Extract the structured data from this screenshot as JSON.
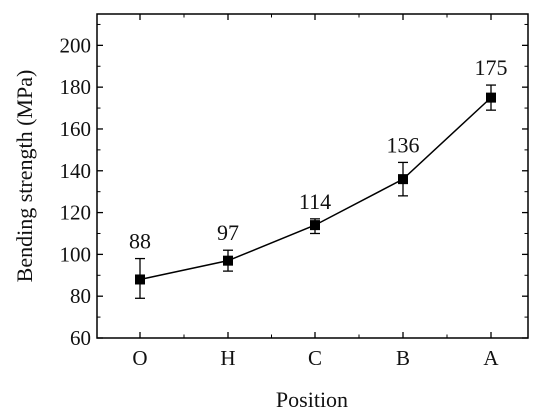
{
  "chart_data": {
    "type": "line",
    "title": "",
    "xlabel": "Position",
    "ylabel": "Bending strength (MPa)",
    "categories": [
      "O",
      "H",
      "C",
      "B",
      "A"
    ],
    "series": [
      {
        "values": [
          88,
          97,
          114,
          136,
          175
        ],
        "error_low": [
          79,
          92,
          110,
          128,
          169
        ],
        "error_high": [
          98,
          102,
          117,
          144,
          181
        ],
        "marker": "square",
        "color": "#000000"
      }
    ],
    "data_labels": [
      "88",
      "97",
      "114",
      "136",
      "175"
    ],
    "ylim": [
      60,
      215
    ],
    "yticks": [
      60,
      80,
      100,
      120,
      140,
      160,
      180,
      200
    ],
    "ytick_labels": [
      "60",
      "80",
      "100",
      "120",
      "140",
      "160",
      "180",
      "200"
    ],
    "grid": false,
    "legend": "none"
  }
}
